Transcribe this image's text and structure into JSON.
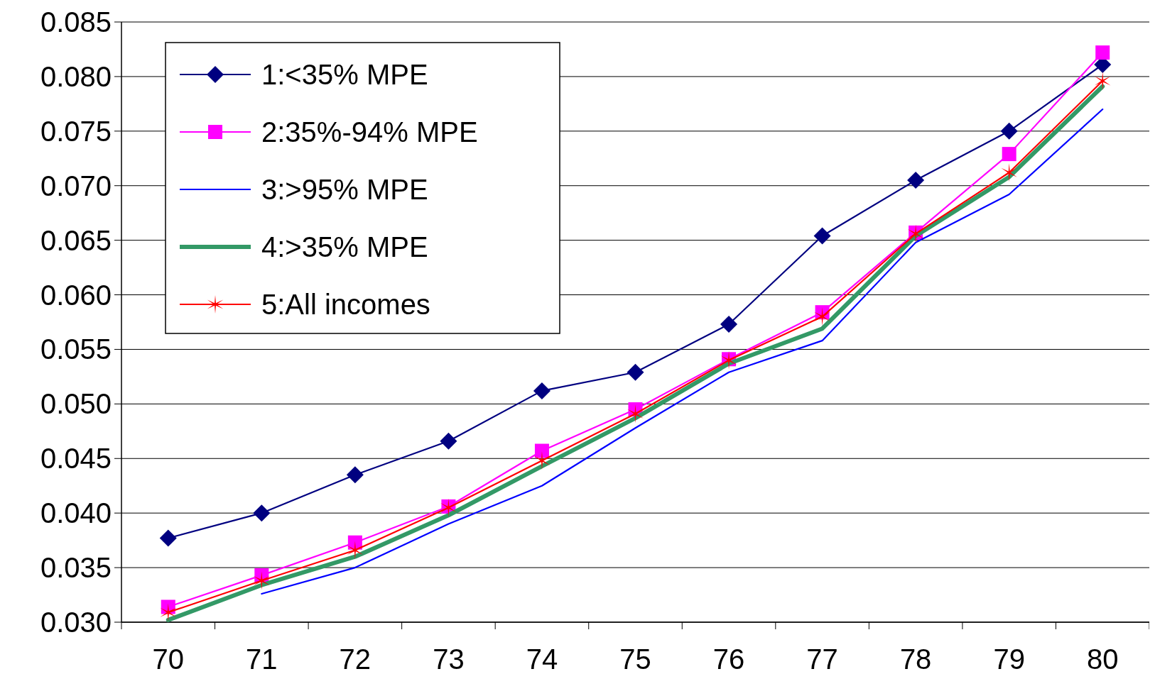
{
  "chart_data": {
    "type": "line",
    "categories": [
      "70",
      "71",
      "72",
      "73",
      "74",
      "75",
      "76",
      "77",
      "78",
      "79",
      "80"
    ],
    "ylim": [
      0.03,
      0.085
    ],
    "yticks": [
      {
        "value": 0.03,
        "label": "0.030"
      },
      {
        "value": 0.035,
        "label": "0.035"
      },
      {
        "value": 0.04,
        "label": "0.040"
      },
      {
        "value": 0.045,
        "label": "0.045"
      },
      {
        "value": 0.05,
        "label": "0.050"
      },
      {
        "value": 0.055,
        "label": "0.055"
      },
      {
        "value": 0.06,
        "label": "0.060"
      },
      {
        "value": 0.065,
        "label": "0.065"
      },
      {
        "value": 0.07,
        "label": "0.070"
      },
      {
        "value": 0.075,
        "label": "0.075"
      },
      {
        "value": 0.08,
        "label": "0.080"
      },
      {
        "value": 0.085,
        "label": "0.085"
      }
    ],
    "grid": "y",
    "legend": "top left",
    "line_style": "solid",
    "series": [
      {
        "name": "1:<35% MPE",
        "color": "#000080",
        "marker": "diamond",
        "values": [
          0.0377,
          0.04,
          0.0435,
          0.0466,
          0.0512,
          0.0529,
          0.0573,
          0.0654,
          0.0705,
          0.075,
          0.0811
        ]
      },
      {
        "name": "2:35%-94% MPE",
        "color": "#ff00ff",
        "marker": "square",
        "values": [
          0.0314,
          0.0343,
          0.0373,
          0.0406,
          0.0457,
          0.0495,
          0.0541,
          0.0584,
          0.0657,
          0.0729,
          0.0822
        ]
      },
      {
        "name": "3:>95% MPE",
        "color": "#0000ff",
        "marker": "none",
        "values": [
          null,
          0.0326,
          0.035,
          0.039,
          0.0425,
          0.0478,
          0.0529,
          0.0558,
          0.0648,
          0.0692,
          0.077
        ]
      },
      {
        "name": "4:>35% MPE",
        "color": "#339966",
        "marker": "none",
        "values": [
          0.0302,
          0.0334,
          0.036,
          0.0398,
          0.0443,
          0.0487,
          0.0537,
          0.0569,
          0.0654,
          0.0708,
          0.0791
        ]
      },
      {
        "name": "5:All incomes",
        "color": "#ff0000",
        "marker": "cross",
        "values": [
          0.0309,
          0.0338,
          0.0366,
          0.0405,
          0.0448,
          0.0491,
          0.054,
          0.058,
          0.0656,
          0.0712,
          0.0796
        ]
      }
    ]
  }
}
